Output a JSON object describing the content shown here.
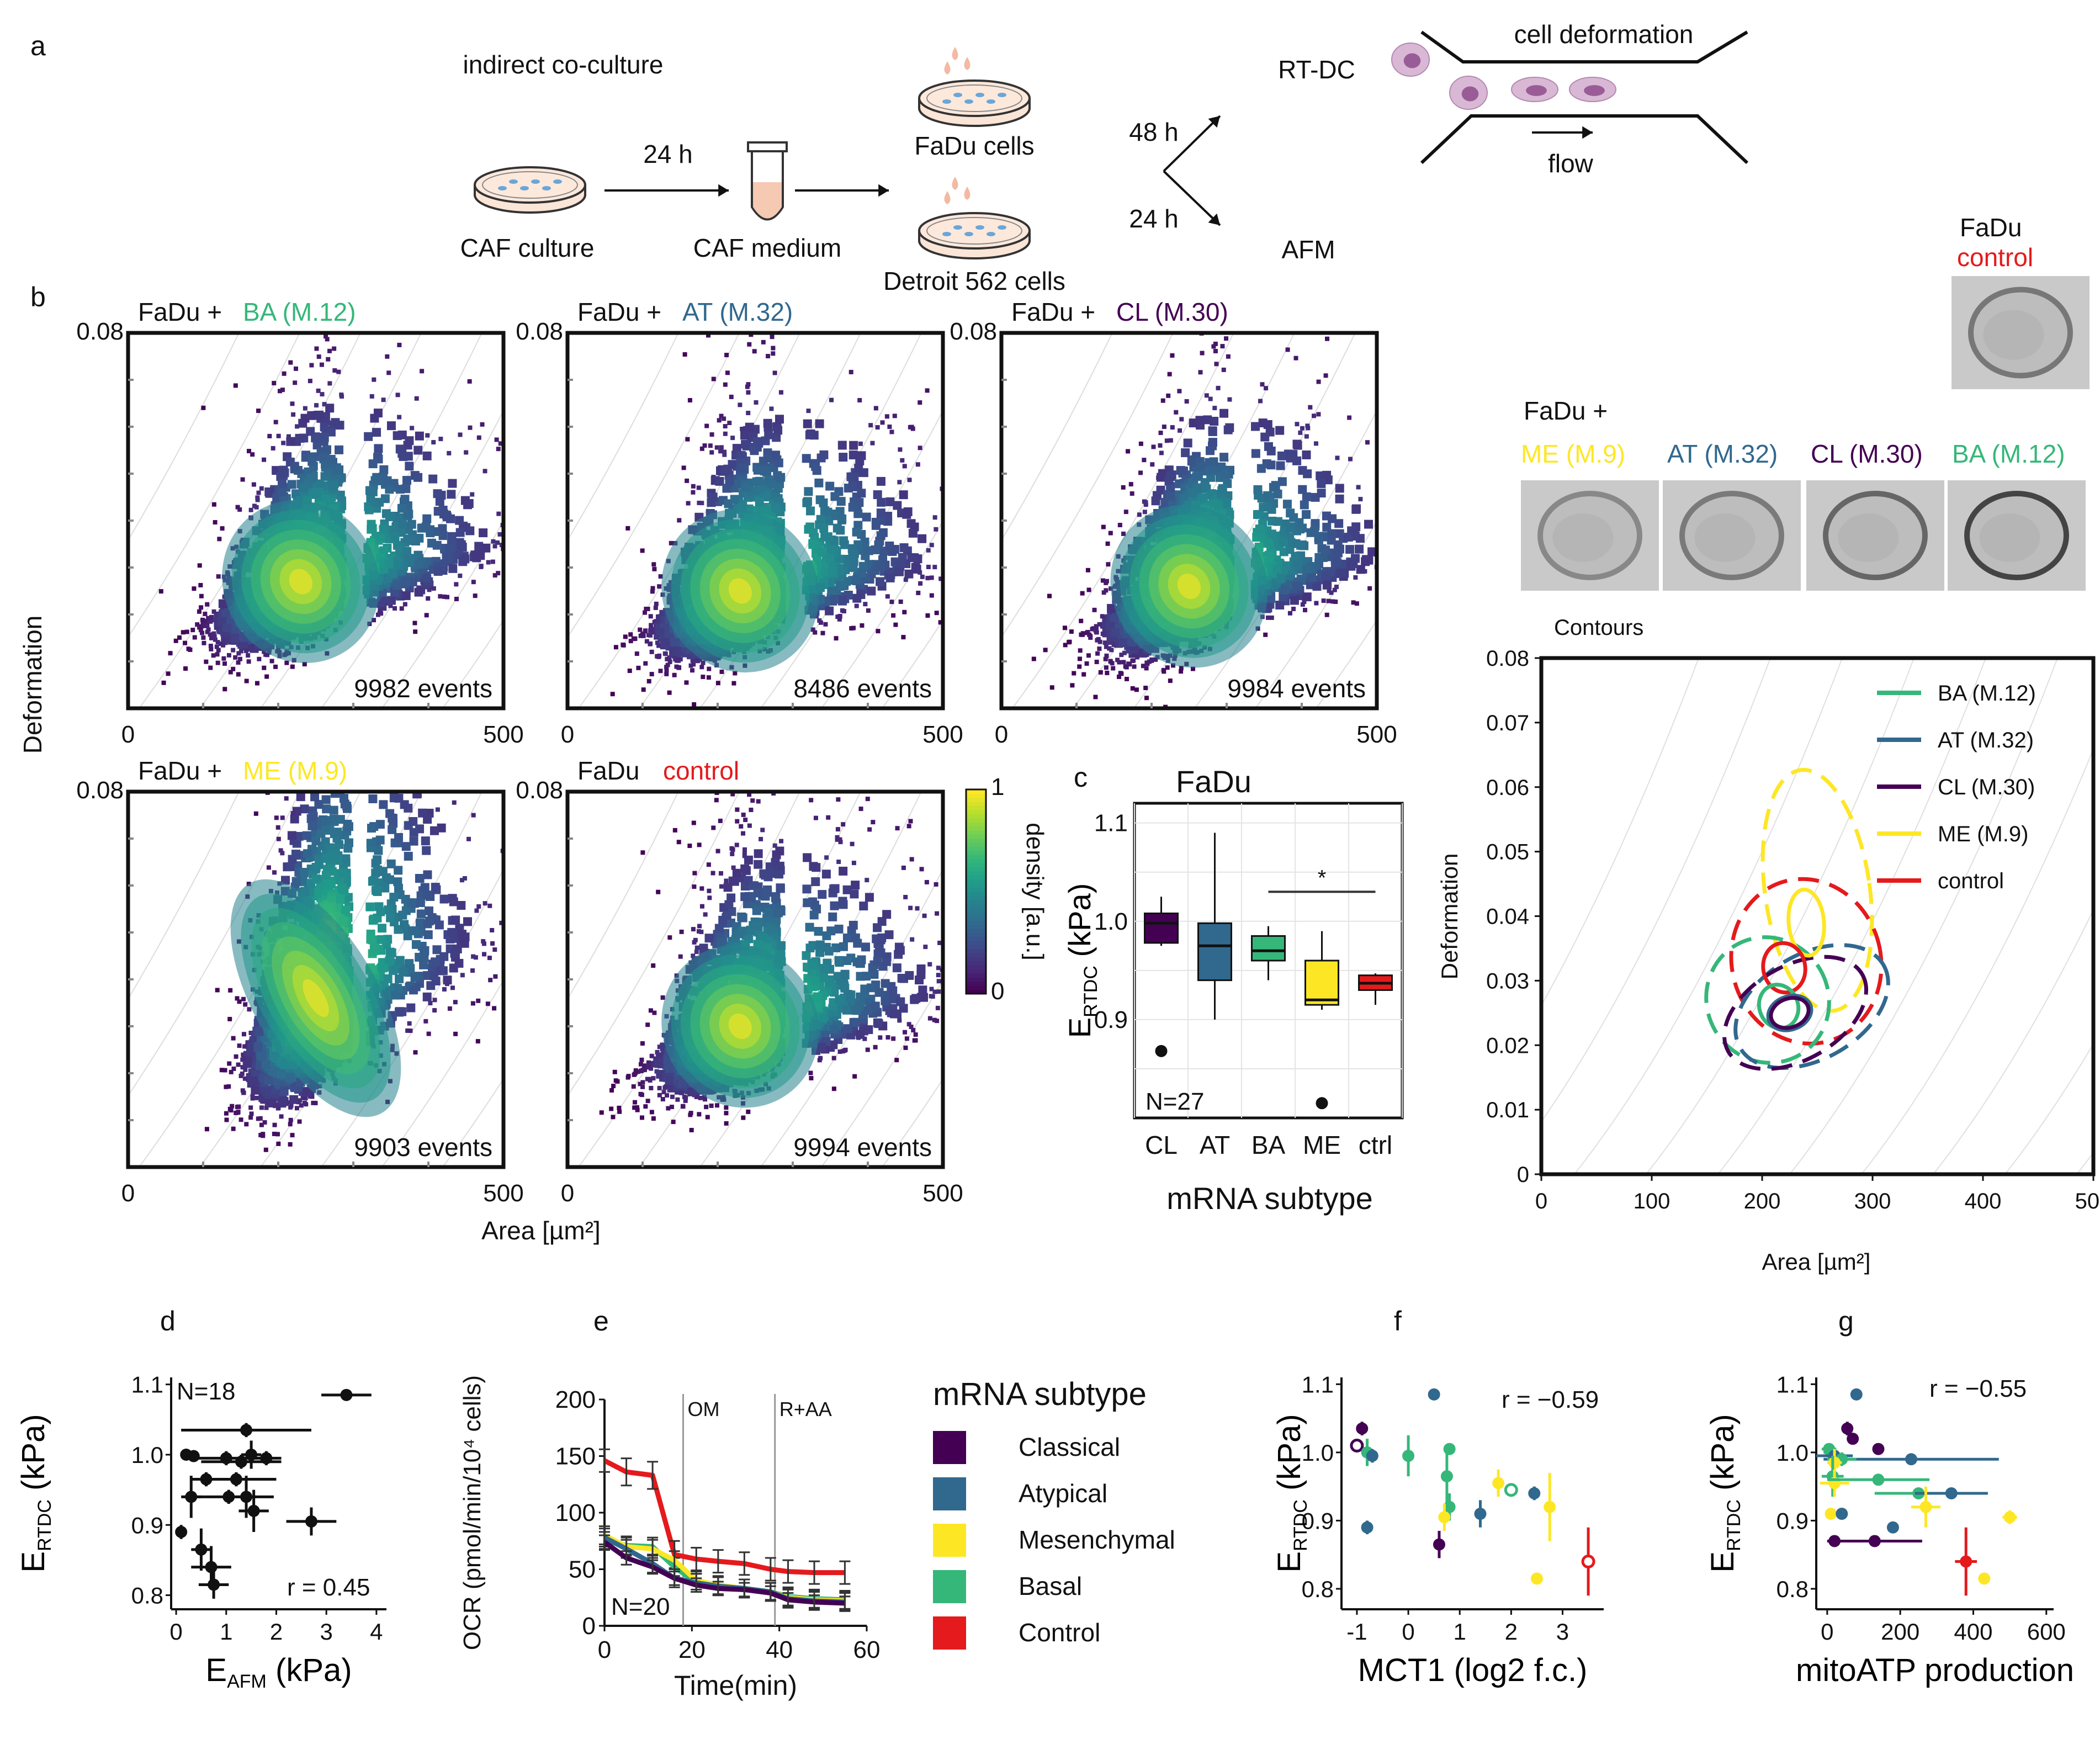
{
  "panels": {
    "a": "a",
    "b": "b",
    "c": "c",
    "d": "d",
    "e": "e",
    "f": "f",
    "g": "g"
  },
  "workflow": {
    "indirect": "indirect co-culture",
    "caf_culture": "CAF culture",
    "t24": "24 h",
    "caf_medium": "CAF medium",
    "fadu_cells": "FaDu cells",
    "detroit": "Detroit 562 cells",
    "t48": "48 h",
    "t24b": "24 h",
    "rtdc": "RT-DC",
    "afm": "AFM",
    "cell_deformation": "cell deformation",
    "flow": "flow"
  },
  "colors": {
    "BA": "#35b779",
    "AT": "#31688e",
    "CL": "#440154",
    "ME": "#fde725",
    "control": "#e41a1c",
    "viridis": [
      "#440154",
      "#482878",
      "#3e4989",
      "#31688e",
      "#26828e",
      "#1f9e89",
      "#35b779",
      "#6ece58",
      "#b5de2b",
      "#fde725"
    ]
  },
  "density_plots": [
    {
      "prefix": "FaDu +",
      "label": "BA (M.12)",
      "key": "BA",
      "events": "9982 events",
      "ymax": "0.08",
      "xmin": "0",
      "xmax": "500",
      "cx": 230,
      "cy": 0.027
    },
    {
      "prefix": "FaDu +",
      "label": "AT (M.32)",
      "key": "AT",
      "events": "8486 events",
      "ymax": "0.08",
      "xmin": "0",
      "xmax": "500",
      "cx": 230,
      "cy": 0.025
    },
    {
      "prefix": "FaDu +",
      "label": "CL (M.30)",
      "key": "CL",
      "events": "9984 events",
      "ymax": "0.08",
      "xmin": "0",
      "xmax": "500",
      "cx": 250,
      "cy": 0.026
    },
    {
      "prefix": "FaDu +",
      "label": "ME (M.9)",
      "key": "ME",
      "events": "9903 events",
      "ymax": "0.08",
      "xmin": "0",
      "xmax": "500",
      "cx": 250,
      "cy": 0.036
    },
    {
      "prefix": "FaDu",
      "label": "control",
      "key": "control",
      "events": "9994 events",
      "ymax": "0.08",
      "xmin": "0",
      "xmax": "500",
      "cx": 230,
      "cy": 0.03
    }
  ],
  "b_axes": {
    "ylabel": "Deformation",
    "xlabel": "Area [µm²]",
    "colorbar_label": "density [a.u.]",
    "cb_max": "1",
    "cb_min": "0"
  },
  "cell_images": {
    "top_title": "FaDu",
    "top_label": "control",
    "row_title": "FaDu +",
    "row": [
      {
        "label": "ME (M.9)",
        "key": "ME"
      },
      {
        "label": "AT (M.32)",
        "key": "AT"
      },
      {
        "label": "CL (M.30)",
        "key": "CL"
      },
      {
        "label": "BA (M.12)",
        "key": "BA"
      }
    ]
  },
  "contours": {
    "title": "Contours",
    "ylabel": "Deformation",
    "xlabel": "Area [µm²]",
    "xticks": [
      "0",
      "100",
      "200",
      "300",
      "400",
      "500"
    ],
    "yticks": [
      "0",
      "0.01",
      "0.02",
      "0.03",
      "0.04",
      "0.05",
      "0.06",
      "0.07",
      "0.08"
    ],
    "legend": [
      {
        "label": "BA (M.12)",
        "key": "BA"
      },
      {
        "label": "AT (M.32)",
        "key": "AT"
      },
      {
        "label": "CL (M.30)",
        "key": "CL"
      },
      {
        "label": "ME (M.9)",
        "key": "ME"
      },
      {
        "label": "control",
        "key": "control"
      }
    ]
  },
  "chart_data": [
    {
      "type": "box",
      "panel": "c",
      "title": "FaDu",
      "ylabel": "E_RTDC (kPa)",
      "xlabel": "mRNA subtype",
      "categories": [
        "CL",
        "AT",
        "BA",
        "ME",
        "ctrl"
      ],
      "yticks": [
        "0.9",
        "1.0",
        "1.1"
      ],
      "ylim": [
        0.8,
        1.12
      ],
      "n_label": "N=27",
      "significance": "*",
      "boxes": [
        {
          "key": "CL",
          "whisker_low": 0.975,
          "q1": 0.978,
          "median": 0.998,
          "q3": 1.008,
          "whisker_high": 1.025,
          "outliers": [
            0.868
          ]
        },
        {
          "key": "AT",
          "whisker_low": 0.9,
          "q1": 0.94,
          "median": 0.975,
          "q3": 0.998,
          "whisker_high": 1.09,
          "outliers": []
        },
        {
          "key": "BA",
          "whisker_low": 0.94,
          "q1": 0.96,
          "median": 0.97,
          "q3": 0.985,
          "whisker_high": 0.995,
          "outliers": []
        },
        {
          "key": "ME",
          "whisker_low": 0.91,
          "q1": 0.915,
          "median": 0.92,
          "q3": 0.96,
          "whisker_high": 0.99,
          "outliers": [
            0.815
          ]
        },
        {
          "key": "control",
          "whisker_low": 0.915,
          "q1": 0.93,
          "median": 0.937,
          "q3": 0.945,
          "whisker_high": 0.947,
          "outliers": []
        }
      ]
    },
    {
      "type": "scatter",
      "panel": "d",
      "xlabel": "E_AFM (kPa)",
      "ylabel": "E_RTDC (kPa)",
      "xticks": [
        "0",
        "1",
        "2",
        "3",
        "4"
      ],
      "yticks": [
        "0.8",
        "0.9",
        "1.0",
        "1.1"
      ],
      "xlim": [
        -0.1,
        4.2
      ],
      "ylim": [
        0.78,
        1.11
      ],
      "n_label": "N=18",
      "r_label": "r = 0.45",
      "points": [
        {
          "x": 3.4,
          "y": 1.085,
          "ex": 0.5,
          "ey": 0.0
        },
        {
          "x": 1.4,
          "y": 1.035,
          "ex": 1.3,
          "ey": 0.01
        },
        {
          "x": 0.2,
          "y": 1.0,
          "ex": 0.1,
          "ey": 0.005
        },
        {
          "x": 0.35,
          "y": 0.998,
          "ex": 0.1,
          "ey": 0.005
        },
        {
          "x": 1.0,
          "y": 0.995,
          "ex": 0.8,
          "ey": 0.01
        },
        {
          "x": 1.3,
          "y": 0.99,
          "ex": 0.8,
          "ey": 0.01
        },
        {
          "x": 1.5,
          "y": 1.0,
          "ex": 0.2,
          "ey": 0.02
        },
        {
          "x": 1.8,
          "y": 0.995,
          "ex": 0.3,
          "ey": 0.01
        },
        {
          "x": 0.6,
          "y": 0.965,
          "ex": 0.3,
          "ey": 0.01
        },
        {
          "x": 1.2,
          "y": 0.965,
          "ex": 0.8,
          "ey": 0.01
        },
        {
          "x": 0.3,
          "y": 0.94,
          "ex": 0.2,
          "ey": 0.03
        },
        {
          "x": 1.05,
          "y": 0.94,
          "ex": 0.9,
          "ey": 0.01
        },
        {
          "x": 1.4,
          "y": 0.94,
          "ex": 0.2,
          "ey": 0.03
        },
        {
          "x": 1.55,
          "y": 0.92,
          "ex": 0.3,
          "ey": 0.03
        },
        {
          "x": 2.7,
          "y": 0.905,
          "ex": 0.5,
          "ey": 0.02
        },
        {
          "x": 0.1,
          "y": 0.89,
          "ex": 0.05,
          "ey": 0.01
        },
        {
          "x": 0.5,
          "y": 0.865,
          "ex": 0.2,
          "ey": 0.03
        },
        {
          "x": 0.7,
          "y": 0.84,
          "ex": 0.4,
          "ey": 0.03
        },
        {
          "x": 0.75,
          "y": 0.815,
          "ex": 0.3,
          "ey": 0.02
        }
      ]
    },
    {
      "type": "line",
      "panel": "e",
      "xlabel": "Time(min)",
      "ylabel": "OCR (pmol/min/10⁴ cells)",
      "xticks": [
        "0",
        "20",
        "40",
        "60"
      ],
      "yticks": [
        "0",
        "50",
        "100",
        "150",
        "200"
      ],
      "xlim": [
        0,
        60
      ],
      "ylim": [
        0,
        200
      ],
      "n_label": "N=20",
      "annotations": [
        {
          "x": 18,
          "label": "OM"
        },
        {
          "x": 39,
          "label": "R+AA"
        }
      ],
      "x": [
        0,
        5,
        11,
        16,
        21,
        26,
        32,
        38,
        42,
        48,
        55
      ],
      "series": [
        {
          "key": "control",
          "values": [
            146,
            136,
            133,
            63,
            59,
            57,
            55,
            50,
            48,
            47,
            47
          ],
          "err": [
            10,
            12,
            12,
            12,
            10,
            10,
            10,
            10,
            10,
            10,
            10
          ]
        },
        {
          "key": "BA",
          "values": [
            75,
            71,
            70,
            52,
            38,
            35,
            33,
            30,
            26,
            24,
            23
          ],
          "err": [
            8,
            8,
            8,
            8,
            8,
            8,
            8,
            8,
            8,
            8,
            8
          ]
        },
        {
          "key": "ME",
          "values": [
            80,
            70,
            68,
            58,
            40,
            36,
            33,
            30,
            25,
            23,
            22
          ],
          "err": [
            8,
            8,
            8,
            8,
            8,
            8,
            8,
            8,
            8,
            8,
            8
          ]
        },
        {
          "key": "AT",
          "values": [
            78,
            68,
            55,
            42,
            38,
            35,
            33,
            30,
            24,
            22,
            21
          ],
          "err": [
            8,
            8,
            8,
            8,
            8,
            8,
            8,
            8,
            8,
            8,
            8
          ]
        },
        {
          "key": "CL",
          "values": [
            74,
            60,
            52,
            42,
            36,
            33,
            32,
            29,
            23,
            21,
            20
          ],
          "err": [
            6,
            6,
            6,
            6,
            6,
            6,
            6,
            6,
            6,
            6,
            6
          ]
        }
      ]
    },
    {
      "type": "scatter",
      "panel": "f",
      "xlabel": "MCT1 (log2 f.c.)",
      "ylabel": "E_RTDC (kPa)",
      "xticks": [
        "-1",
        "0",
        "1",
        "2",
        "3"
      ],
      "yticks": [
        "0.8",
        "0.9",
        "1.0",
        "1.1"
      ],
      "xlim": [
        -1.3,
        3.8
      ],
      "ylim": [
        0.77,
        1.11
      ],
      "r_label": "r = −0.59",
      "points": [
        {
          "x": -0.9,
          "y": 1.035,
          "key": "CL",
          "ey": 0.01,
          "open": false
        },
        {
          "x": -1.0,
          "y": 1.01,
          "key": "CL",
          "ey": 0.0,
          "open": true
        },
        {
          "x": -0.8,
          "y": 1.0,
          "key": "BA",
          "ey": 0.02,
          "open": false
        },
        {
          "x": -0.7,
          "y": 0.995,
          "key": "AT",
          "ey": 0.01,
          "open": false
        },
        {
          "x": -0.8,
          "y": 0.89,
          "key": "AT",
          "ey": 0.01,
          "open": false
        },
        {
          "x": 0.0,
          "y": 0.995,
          "key": "BA",
          "ey": 0.03,
          "open": false
        },
        {
          "x": 0.5,
          "y": 1.085,
          "key": "AT",
          "ey": 0.005,
          "open": false
        },
        {
          "x": 0.8,
          "y": 1.005,
          "key": "BA",
          "ey": 0.005,
          "open": false
        },
        {
          "x": 0.75,
          "y": 0.965,
          "key": "BA",
          "ey": 0.04,
          "open": false
        },
        {
          "x": 0.8,
          "y": 0.92,
          "key": "BA",
          "ey": 0.02,
          "open": false
        },
        {
          "x": 0.6,
          "y": 0.865,
          "key": "CL",
          "ey": 0.02,
          "open": false
        },
        {
          "x": 0.7,
          "y": 0.905,
          "key": "ME",
          "ey": 0.02,
          "open": false
        },
        {
          "x": 1.4,
          "y": 0.91,
          "key": "AT",
          "ey": 0.02,
          "open": false
        },
        {
          "x": 1.75,
          "y": 0.955,
          "key": "ME",
          "ey": 0.02,
          "open": false
        },
        {
          "x": 2.0,
          "y": 0.945,
          "key": "BA",
          "ey": 0.0,
          "open": true
        },
        {
          "x": 2.45,
          "y": 0.94,
          "key": "AT",
          "ey": 0.01,
          "open": false
        },
        {
          "x": 2.75,
          "y": 0.92,
          "key": "ME",
          "ey": 0.05,
          "open": false
        },
        {
          "x": 2.5,
          "y": 0.815,
          "key": "ME",
          "ey": 0.0,
          "open": false
        },
        {
          "x": 3.5,
          "y": 0.84,
          "key": "control",
          "ey": 0.05,
          "open": true
        }
      ]
    },
    {
      "type": "scatter",
      "panel": "g",
      "xlabel": "mitoATP production",
      "ylabel": "E_RTDC (kPa)",
      "xticks": [
        "0",
        "200",
        "400",
        "600"
      ],
      "yticks": [
        "0.8",
        "0.9",
        "1.0",
        "1.1"
      ],
      "xlim": [
        -30,
        620
      ],
      "ylim": [
        0.77,
        1.11
      ],
      "r_label": "r = −0.55",
      "points": [
        {
          "x": 80,
          "y": 1.085,
          "key": "AT",
          "ex": 10,
          "ey": 0.0
        },
        {
          "x": 55,
          "y": 1.035,
          "key": "CL",
          "ex": 10,
          "ey": 0.01
        },
        {
          "x": 70,
          "y": 1.02,
          "key": "CL",
          "ex": 10,
          "ey": 0.0
        },
        {
          "x": 140,
          "y": 1.005,
          "key": "CL",
          "ex": 0,
          "ey": 0.0
        },
        {
          "x": 5,
          "y": 1.005,
          "key": "BA",
          "ex": 20,
          "ey": 0.0
        },
        {
          "x": 10,
          "y": 1.0,
          "key": "BA",
          "ex": 20,
          "ey": 0.0
        },
        {
          "x": 20,
          "y": 0.995,
          "key": "AT",
          "ex": 50,
          "ey": 0.0
        },
        {
          "x": 230,
          "y": 0.99,
          "key": "AT",
          "ex": 240,
          "ey": 0.0
        },
        {
          "x": 40,
          "y": 0.99,
          "key": "BA",
          "ex": 40,
          "ey": 0.01
        },
        {
          "x": 20,
          "y": 0.985,
          "key": "ME",
          "ex": 20,
          "ey": 0.02
        },
        {
          "x": 15,
          "y": 0.965,
          "key": "BA",
          "ex": 30,
          "ey": 0.03
        },
        {
          "x": 20,
          "y": 0.955,
          "key": "ME",
          "ex": 40,
          "ey": 0.02
        },
        {
          "x": 140,
          "y": 0.96,
          "key": "BA",
          "ex": 140,
          "ey": 0.0
        },
        {
          "x": 250,
          "y": 0.94,
          "key": "BA",
          "ex": 120,
          "ey": 0.0
        },
        {
          "x": 340,
          "y": 0.94,
          "key": "AT",
          "ex": 100,
          "ey": 0.0
        },
        {
          "x": 270,
          "y": 0.92,
          "key": "ME",
          "ex": 40,
          "ey": 0.03
        },
        {
          "x": 10,
          "y": 0.91,
          "key": "ME",
          "ex": 10,
          "ey": 0.0
        },
        {
          "x": 40,
          "y": 0.91,
          "key": "AT",
          "ex": 0,
          "ey": 0.0
        },
        {
          "x": 180,
          "y": 0.89,
          "key": "AT",
          "ex": 0,
          "ey": 0.0
        },
        {
          "x": 20,
          "y": 0.87,
          "key": "CL",
          "ex": 20,
          "ey": 0.0
        },
        {
          "x": 130,
          "y": 0.87,
          "key": "CL",
          "ex": 130,
          "ey": 0.0
        },
        {
          "x": 500,
          "y": 0.905,
          "key": "ME",
          "ex": 20,
          "ey": 0.01
        },
        {
          "x": 380,
          "y": 0.84,
          "key": "control",
          "ex": 30,
          "ey": 0.05
        },
        {
          "x": 430,
          "y": 0.815,
          "key": "ME",
          "ex": 0,
          "ey": 0.0
        }
      ]
    }
  ],
  "legend_e": {
    "title": "mRNA subtype",
    "items": [
      {
        "label": "Classical",
        "key": "CL"
      },
      {
        "label": "Atypical",
        "key": "AT"
      },
      {
        "label": "Mesenchymal",
        "key": "ME"
      },
      {
        "label": "Basal",
        "key": "BA"
      },
      {
        "label": "Control",
        "key": "control"
      }
    ]
  }
}
